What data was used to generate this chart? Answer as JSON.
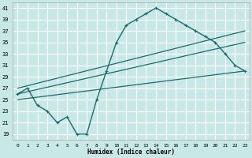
{
  "xlabel": "Humidex (Indice chaleur)",
  "bg_color": "#c8e8e8",
  "grid_color": "#ffffff",
  "line_color": "#1a6b6b",
  "xlim": [
    -0.5,
    23.5
  ],
  "ylim": [
    18,
    42
  ],
  "xticks": [
    0,
    1,
    2,
    3,
    4,
    5,
    6,
    7,
    8,
    9,
    10,
    11,
    12,
    13,
    14,
    15,
    16,
    17,
    18,
    19,
    20,
    21,
    22,
    23
  ],
  "yticks": [
    19,
    21,
    23,
    25,
    27,
    29,
    31,
    33,
    35,
    37,
    39,
    41
  ],
  "series1_x": [
    0,
    1,
    2,
    3,
    4,
    5,
    6,
    7,
    8,
    9,
    10,
    11,
    12,
    13,
    14,
    15,
    16,
    17,
    18,
    19,
    20,
    21,
    22,
    23
  ],
  "series1_y": [
    26,
    27,
    24,
    23,
    21,
    22,
    19,
    19,
    25,
    30,
    35,
    38,
    39,
    40,
    41,
    40,
    39,
    38,
    37,
    36,
    35,
    33,
    31,
    30
  ],
  "line1_x": [
    0,
    23
  ],
  "line1_y": [
    27,
    37
  ],
  "line2_x": [
    0,
    23
  ],
  "line2_y": [
    26,
    35
  ],
  "line3_x": [
    0,
    23
  ],
  "line3_y": [
    25,
    30
  ]
}
